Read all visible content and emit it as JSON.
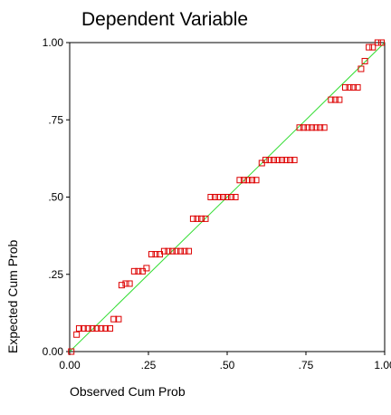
{
  "chart_data": {
    "type": "scatter",
    "title": "Dependent Variable",
    "xlabel": "Observed Cum Prob",
    "ylabel": "Expected Cum Prob",
    "xlim": [
      0,
      1
    ],
    "ylim": [
      0,
      1
    ],
    "x_ticks": [
      0,
      0.25,
      0.5,
      0.75,
      1.0
    ],
    "x_tick_labels": [
      "0.00",
      ".25",
      ".50",
      ".75",
      "1.00"
    ],
    "y_ticks": [
      0,
      0.25,
      0.5,
      0.75,
      1.0
    ],
    "y_tick_labels": [
      "0.00",
      ".25",
      ".50",
      ".75",
      "1.00"
    ],
    "reference_line": {
      "from": [
        0,
        0
      ],
      "to": [
        1,
        1
      ],
      "color": "#33dd33"
    },
    "marker_color": "#dd0000",
    "series": [
      {
        "points": [
          [
            0.005,
            0.0
          ],
          [
            0.022,
            0.055
          ],
          [
            0.03,
            0.075
          ],
          [
            0.044,
            0.075
          ],
          [
            0.058,
            0.075
          ],
          [
            0.072,
            0.075
          ],
          [
            0.086,
            0.075
          ],
          [
            0.1,
            0.075
          ],
          [
            0.114,
            0.075
          ],
          [
            0.128,
            0.075
          ],
          [
            0.14,
            0.105
          ],
          [
            0.155,
            0.105
          ],
          [
            0.165,
            0.215
          ],
          [
            0.178,
            0.22
          ],
          [
            0.19,
            0.22
          ],
          [
            0.205,
            0.26
          ],
          [
            0.218,
            0.26
          ],
          [
            0.231,
            0.26
          ],
          [
            0.244,
            0.27
          ],
          [
            0.26,
            0.315
          ],
          [
            0.273,
            0.315
          ],
          [
            0.286,
            0.315
          ],
          [
            0.3,
            0.325
          ],
          [
            0.313,
            0.325
          ],
          [
            0.326,
            0.325
          ],
          [
            0.339,
            0.325
          ],
          [
            0.352,
            0.325
          ],
          [
            0.365,
            0.325
          ],
          [
            0.378,
            0.325
          ],
          [
            0.392,
            0.43
          ],
          [
            0.405,
            0.43
          ],
          [
            0.418,
            0.43
          ],
          [
            0.431,
            0.43
          ],
          [
            0.448,
            0.5
          ],
          [
            0.461,
            0.5
          ],
          [
            0.474,
            0.5
          ],
          [
            0.487,
            0.5
          ],
          [
            0.5,
            0.5
          ],
          [
            0.513,
            0.5
          ],
          [
            0.526,
            0.5
          ],
          [
            0.54,
            0.555
          ],
          [
            0.553,
            0.555
          ],
          [
            0.566,
            0.555
          ],
          [
            0.579,
            0.555
          ],
          [
            0.592,
            0.555
          ],
          [
            0.61,
            0.61
          ],
          [
            0.622,
            0.62
          ],
          [
            0.635,
            0.62
          ],
          [
            0.648,
            0.62
          ],
          [
            0.661,
            0.62
          ],
          [
            0.674,
            0.62
          ],
          [
            0.687,
            0.62
          ],
          [
            0.7,
            0.62
          ],
          [
            0.713,
            0.62
          ],
          [
            0.73,
            0.725
          ],
          [
            0.743,
            0.725
          ],
          [
            0.756,
            0.725
          ],
          [
            0.769,
            0.725
          ],
          [
            0.782,
            0.725
          ],
          [
            0.795,
            0.725
          ],
          [
            0.808,
            0.725
          ],
          [
            0.83,
            0.815
          ],
          [
            0.843,
            0.815
          ],
          [
            0.856,
            0.815
          ],
          [
            0.875,
            0.855
          ],
          [
            0.888,
            0.855
          ],
          [
            0.901,
            0.855
          ],
          [
            0.914,
            0.855
          ],
          [
            0.925,
            0.915
          ],
          [
            0.937,
            0.94
          ],
          [
            0.95,
            0.985
          ],
          [
            0.962,
            0.985
          ],
          [
            0.978,
            1.0
          ],
          [
            0.99,
            1.0
          ]
        ]
      }
    ]
  }
}
